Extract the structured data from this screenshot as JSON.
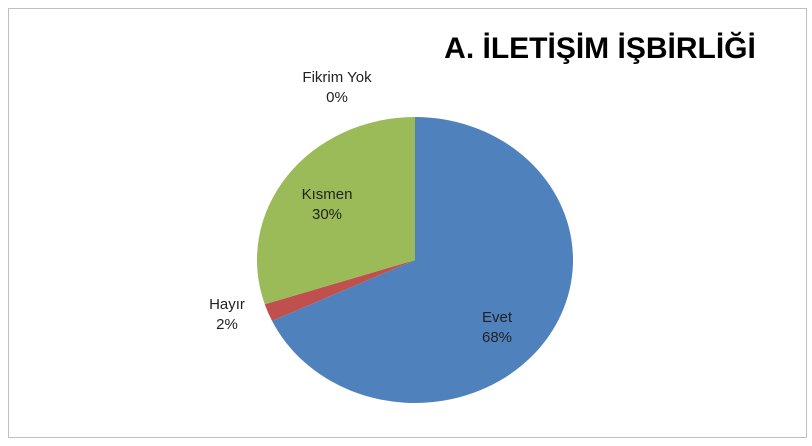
{
  "chart_data": {
    "type": "pie",
    "title": "A. İLETİŞİM İŞBİRLİĞİ",
    "categories": [
      "Evet",
      "Hayır",
      "Kısmen",
      "Fikrim Yok"
    ],
    "values": [
      68,
      2,
      30,
      0
    ],
    "value_labels": [
      "68%",
      "2%",
      "30%",
      "0%"
    ],
    "colors": [
      "#4f81bd",
      "#c0504d",
      "#9bbb59",
      "#8064a2"
    ]
  }
}
